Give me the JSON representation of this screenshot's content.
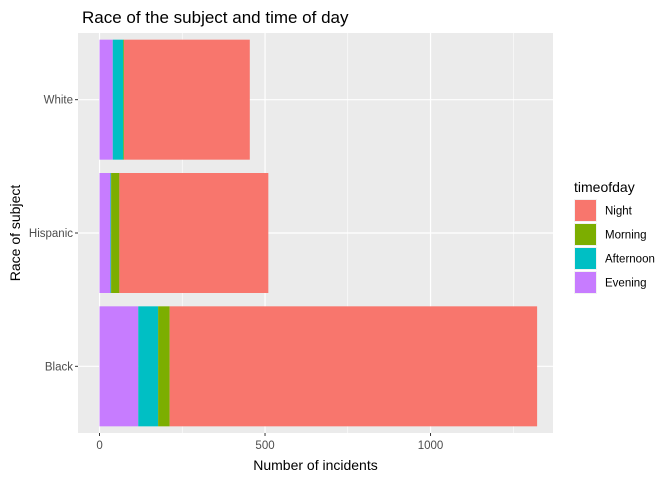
{
  "chart_data": {
    "type": "bar",
    "orientation": "horizontal",
    "stacked": true,
    "title": "Race of the subject and time of day",
    "xlabel": "Number of incidents",
    "ylabel": "Race of subject",
    "categories": [
      "White",
      "Hispanic",
      "Black"
    ],
    "xlim": [
      -65,
      1370
    ],
    "xticks": [
      0,
      500,
      1000
    ],
    "stack_order": [
      "Evening",
      "Afternoon",
      "Morning",
      "Night"
    ],
    "series": [
      {
        "name": "Night",
        "color": "#F8766D",
        "values": [
          380,
          450,
          1110
        ]
      },
      {
        "name": "Morning",
        "color": "#7CAE00",
        "values": [
          2,
          25,
          35
        ]
      },
      {
        "name": "Afternoon",
        "color": "#00BFC4",
        "values": [
          32,
          2,
          60
        ]
      },
      {
        "name": "Evening",
        "color": "#C77CFF",
        "values": [
          40,
          33,
          117
        ]
      }
    ],
    "legend": {
      "title": "timeofday",
      "position": "right",
      "entries": [
        "Night",
        "Morning",
        "Afternoon",
        "Evening"
      ]
    },
    "grid": true,
    "panel_background": "#EBEBEB",
    "grid_color": "#FFFFFF"
  }
}
